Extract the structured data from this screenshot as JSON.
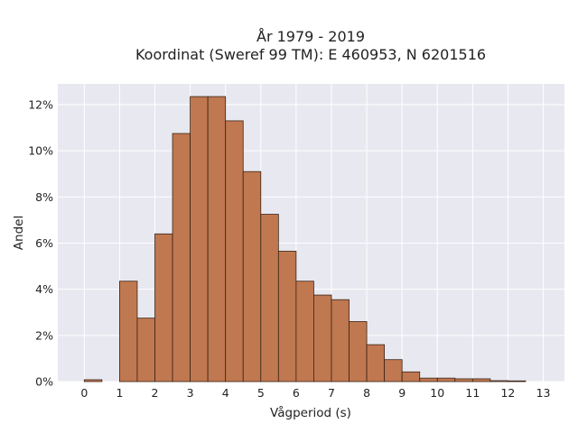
{
  "chart_data": {
    "type": "bar",
    "title_line1": "År 1979 - 2019",
    "title_line2": "Koordinat (Sweref 99 TM): E 460953, N 6201516",
    "xlabel": "Vågperiod (s)",
    "ylabel": "Andel",
    "bin_width": 0.5,
    "bin_starts": [
      0,
      0.5,
      1,
      1.5,
      2,
      2.5,
      3,
      3.5,
      4,
      4.5,
      5,
      5.5,
      6,
      6.5,
      7,
      7.5,
      8,
      8.5,
      9,
      9.5,
      10,
      10.5,
      11,
      11.5,
      12,
      12.5
    ],
    "values": [
      0.08,
      0,
      4.35,
      2.75,
      6.4,
      10.75,
      12.35,
      12.35,
      11.3,
      9.1,
      7.25,
      5.65,
      4.35,
      3.75,
      3.55,
      2.6,
      1.6,
      0.95,
      0.42,
      0.15,
      0.15,
      0.12,
      0.12,
      0.04,
      0.03,
      0
    ],
    "xlim": [
      -0.75,
      13.6
    ],
    "ylim": [
      0,
      12.9
    ],
    "x_ticks": [
      0,
      1,
      2,
      3,
      4,
      5,
      6,
      7,
      8,
      9,
      10,
      11,
      12,
      13
    ],
    "y_ticks": [
      0,
      2,
      4,
      6,
      8,
      10,
      12
    ],
    "y_tick_suffix": "%",
    "grid": true,
    "bar_color": "#c07850",
    "bar_edge_color": "#3a2418",
    "plot_bg_color": "#e8e8f0",
    "grid_color": "#ffffff"
  }
}
